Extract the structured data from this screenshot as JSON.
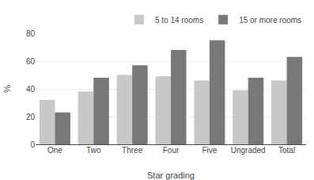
{
  "chart_data": {
    "type": "bar",
    "categories": [
      "One",
      "Two",
      "Three",
      "Four",
      "Five",
      "Ungraded",
      "Total"
    ],
    "series": [
      {
        "name": "5 to 14 rooms",
        "color": "#c8c8c8",
        "values": [
          32,
          38,
          50,
          49,
          46,
          39,
          46
        ]
      },
      {
        "name": "15 or more rooms",
        "color": "#787878",
        "values": [
          23,
          48,
          57,
          68,
          75,
          48,
          63
        ]
      }
    ],
    "xlabel": "Star grading",
    "ylabel": "%",
    "ylim": [
      0,
      80
    ],
    "yticks": [
      0,
      20,
      40,
      60,
      80
    ],
    "grid": true,
    "legend": "upper right"
  }
}
